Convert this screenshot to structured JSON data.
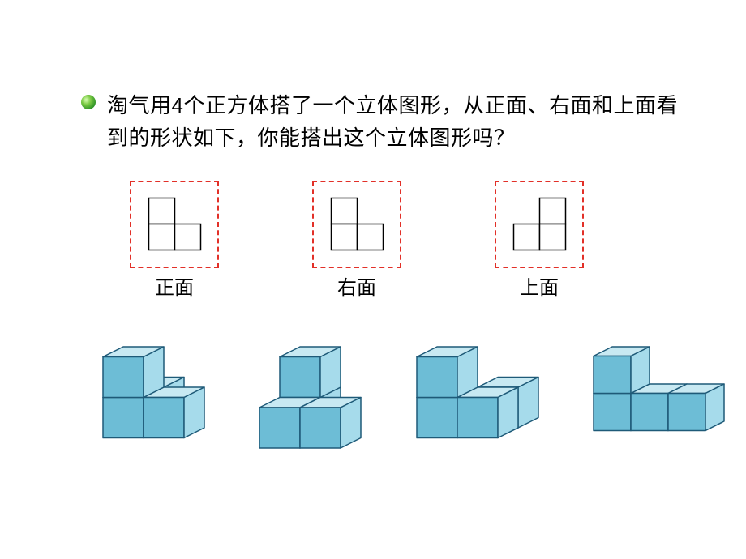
{
  "bullet_color_stops": [
    "#d9ffb3",
    "#7ac943",
    "#228b22",
    "#0a5a0a"
  ],
  "question": "淘气用4个正方体搭了一个立体图形，从正面、右面和上面看到的形状如下，你能搭出这个立体图形吗？",
  "views": [
    {
      "key": "front",
      "label": "正面",
      "grid": [
        [
          0,
          1,
          0
        ],
        [
          0,
          1,
          1
        ]
      ],
      "unit": 32
    },
    {
      "key": "right",
      "label": "右面",
      "grid": [
        [
          0,
          1,
          0
        ],
        [
          0,
          1,
          1
        ]
      ],
      "unit": 32
    },
    {
      "key": "top",
      "label": "上面",
      "grid": [
        [
          0,
          0,
          1
        ],
        [
          0,
          1,
          1
        ]
      ],
      "unit": 32
    }
  ],
  "view_style": {
    "dashed_border_color": "#e23028",
    "cell_fill": "#ffffff",
    "cell_stroke": "#000000",
    "cell_stroke_width": 1.5,
    "label_fontsize": 24
  },
  "iso_figures": [
    {
      "cubes": [
        [
          0,
          0,
          0
        ],
        [
          1,
          0,
          0
        ],
        [
          0,
          1,
          0
        ],
        [
          0,
          0,
          1
        ]
      ],
      "size": 50
    },
    {
      "cubes": [
        [
          0,
          0,
          0
        ],
        [
          1,
          0,
          0
        ],
        [
          0,
          1,
          0
        ],
        [
          0,
          1,
          1
        ]
      ],
      "size": 50
    },
    {
      "cubes": [
        [
          0,
          0,
          0
        ],
        [
          1,
          0,
          0
        ],
        [
          0,
          0,
          1
        ],
        [
          1,
          1,
          0
        ]
      ],
      "size": 50
    },
    {
      "cubes": [
        [
          0,
          0,
          0
        ],
        [
          1,
          0,
          0
        ],
        [
          2,
          0,
          0
        ],
        [
          0,
          0,
          1
        ]
      ],
      "size": 46
    }
  ],
  "iso_style": {
    "face_top": "#c8e9f2",
    "face_left": "#6dbdd6",
    "face_right": "#a6dbeb",
    "stroke": "#1e5a78",
    "stroke_width": 1.5
  }
}
